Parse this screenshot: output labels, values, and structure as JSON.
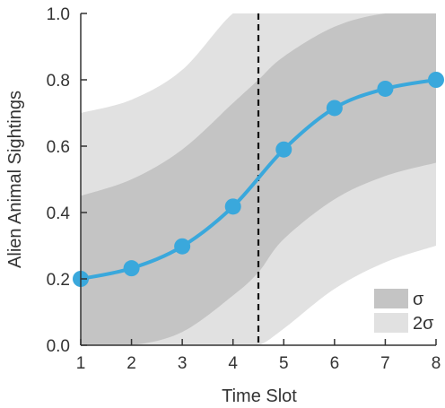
{
  "chart_data": {
    "type": "line",
    "title": "",
    "xlabel": "Time Slot",
    "ylabel": "Alien Animal Sightings",
    "xlim": [
      1,
      8
    ],
    "ylim": [
      0,
      1
    ],
    "x_ticks": [
      "1",
      "2",
      "3",
      "4",
      "5",
      "6",
      "7",
      "8"
    ],
    "y_ticks": [
      "0.0",
      "0.2",
      "0.4",
      "0.6",
      "0.8",
      "1.0"
    ],
    "grid": false,
    "legend_position": "bottom-right",
    "legend": [
      {
        "label": "σ",
        "color": "#c4c4c4"
      },
      {
        "label": "2σ",
        "color": "#e1e1e1"
      }
    ],
    "series": [
      {
        "x": [
          1,
          2,
          3,
          4,
          5,
          6,
          7,
          8
        ],
        "y": [
          0.2,
          0.232,
          0.298,
          0.418,
          0.59,
          0.715,
          0.773,
          0.8
        ],
        "color": "#3aa8dc"
      }
    ],
    "bands": {
      "x": [
        1,
        2,
        3,
        4,
        4.5,
        5,
        6,
        7,
        8
      ],
      "sigma_lower": [
        0.0,
        0.0,
        0.04,
        0.15,
        0.22,
        0.32,
        0.44,
        0.51,
        0.55
      ],
      "sigma_upper": [
        0.45,
        0.5,
        0.59,
        0.73,
        0.8,
        0.87,
        0.96,
        1.0,
        1.0
      ],
      "two_sigma_lower": [
        0.0,
        0.0,
        0.0,
        0.0,
        0.0,
        0.05,
        0.17,
        0.25,
        0.3
      ],
      "two_sigma_upper": [
        0.7,
        0.74,
        0.83,
        1.0,
        1.0,
        1.0,
        1.0,
        1.0,
        1.0
      ]
    },
    "vertical_line_x": 4.5,
    "colors": {
      "line": "#3aa8dc",
      "sigma": "#c4c4c4",
      "two_sigma": "#e1e1e1",
      "axis": "#333333",
      "vline": "#111111"
    }
  }
}
